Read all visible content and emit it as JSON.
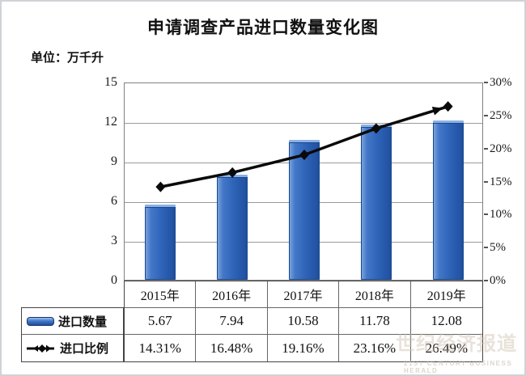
{
  "title": "申请调查产品进口数量变化图",
  "unit_label": "单位：万千升",
  "watermark": {
    "cn": "世纪经济报道",
    "en": "21ST CENTURY BUSINESS HERALD"
  },
  "chart_data": {
    "type": "bar",
    "subtype": "bar+line combo, dual axis",
    "categories": [
      "2015年",
      "2016年",
      "2017年",
      "2018年",
      "2019年"
    ],
    "series": [
      {
        "name": "进口数量",
        "type": "bar",
        "axis": "left",
        "values": [
          5.67,
          7.94,
          10.58,
          11.78,
          12.08
        ]
      },
      {
        "name": "进口比例",
        "type": "line",
        "axis": "right",
        "values": [
          14.31,
          16.48,
          19.16,
          23.16,
          26.49
        ]
      }
    ],
    "title": "申请调查产品进口数量变化图",
    "xlabel": "",
    "ylabel_left": "万千升",
    "ylabel_right": "%",
    "left_axis": {
      "min": 0,
      "max": 15,
      "ticks": [
        "15",
        "12",
        "9",
        "6",
        "3",
        "0"
      ]
    },
    "right_axis": {
      "min": 0,
      "max": 30,
      "ticks": [
        "30%",
        "25%",
        "20%",
        "15%",
        "10%",
        "5%",
        "0%"
      ]
    },
    "grid": true,
    "legend_position": "table-left"
  },
  "table": {
    "header_row": [
      "2015年",
      "2016年",
      "2017年",
      "2018年",
      "2019年"
    ],
    "rows": [
      {
        "label": "进口数量",
        "icon": "bar-swatch",
        "cells": [
          "5.67",
          "7.94",
          "10.58",
          "11.78",
          "12.08"
        ]
      },
      {
        "label": "进口比例",
        "icon": "line-arrow-swatch",
        "cells": [
          "14.31%",
          "16.48%",
          "19.16%",
          "23.16%",
          "26.49%"
        ]
      }
    ]
  },
  "colors": {
    "bar": "#2E63B8",
    "bar_light": "#7FA8DE",
    "bar_dark": "#1F4F9E",
    "line": "#0A0A0A",
    "grid": "#9A9A9A",
    "axis_text": "#1A1A1A",
    "table_border": "#555555",
    "watermark": "#CDBFAF"
  }
}
